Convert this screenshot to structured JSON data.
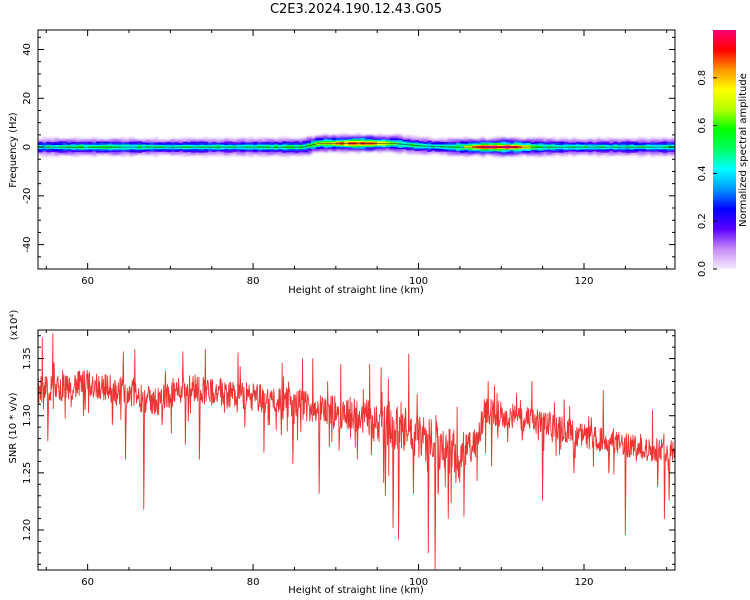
{
  "title": "C2E3.2024.190.12.43.G05",
  "chart_data": [
    {
      "type": "heatmap",
      "xlabel": "Height of straight line (km)",
      "ylabel": "Frequency (Hz)",
      "xlim": [
        54,
        131
      ],
      "ylim": [
        -50,
        48
      ],
      "xticks": [
        60,
        80,
        100,
        120
      ],
      "yticks": [
        40,
        20,
        0,
        -20,
        -40
      ],
      "yticklabels": [
        "40",
        "20",
        "0",
        "-20",
        "-40"
      ],
      "band": {
        "center_freq": [
          [
            54,
            0
          ],
          [
            86,
            0
          ],
          [
            88,
            1.5
          ],
          [
            97,
            1.5
          ],
          [
            100,
            0.5
          ],
          [
            104,
            0
          ],
          [
            131,
            0
          ]
        ],
        "halfwidth_hz": 3.5,
        "amplitude_profile": [
          [
            54,
            0.45
          ],
          [
            58,
            0.5
          ],
          [
            62,
            0.55
          ],
          [
            66,
            0.5
          ],
          [
            70,
            0.45
          ],
          [
            74,
            0.5
          ],
          [
            78,
            0.45
          ],
          [
            82,
            0.5
          ],
          [
            86,
            0.55
          ],
          [
            88,
            0.65
          ],
          [
            91,
            0.8
          ],
          [
            93,
            0.9
          ],
          [
            95,
            0.8
          ],
          [
            97,
            0.6
          ],
          [
            100,
            0.5
          ],
          [
            102,
            0.45
          ],
          [
            104,
            0.5
          ],
          [
            106,
            0.7
          ],
          [
            108,
            0.95
          ],
          [
            110,
            0.97
          ],
          [
            112,
            0.85
          ],
          [
            114,
            0.6
          ],
          [
            118,
            0.5
          ],
          [
            122,
            0.45
          ],
          [
            126,
            0.45
          ],
          [
            131,
            0.5
          ]
        ]
      },
      "colorbar": {
        "label": "Normalized spectral amplitude",
        "ticks": [
          0.0,
          0.2,
          0.4,
          0.6,
          0.8
        ],
        "ticklabels": [
          "0.0",
          "0.2",
          "0.4",
          "0.6",
          "0.8"
        ],
        "range": [
          0,
          1
        ],
        "colormap": [
          "#f4eafd",
          "#c78cf7",
          "#5a00ff",
          "#0000ff",
          "#0096ff",
          "#00ffff",
          "#00ff64",
          "#00ff00",
          "#b4ff00",
          "#ffff00",
          "#ff9600",
          "#ff0000",
          "#ff0078"
        ]
      }
    },
    {
      "type": "line",
      "xlabel": "Height of straight line (km)",
      "ylabel": "SNR (10 * v/v)",
      "scale_label": "(x10⁴)",
      "xlim": [
        54,
        131
      ],
      "ylim": [
        1.165,
        1.375
      ],
      "xticks": [
        60,
        80,
        100,
        120
      ],
      "yticks": [
        1.35,
        1.3,
        1.25,
        1.2
      ],
      "yticklabels": [
        "1.35",
        "1.30",
        "1.25",
        "1.20"
      ],
      "color": "#ee3333",
      "series": [
        {
          "baseline": [
            [
              54,
              1.322
            ],
            [
              60,
              1.328
            ],
            [
              64,
              1.322
            ],
            [
              68,
              1.312
            ],
            [
              72,
              1.326
            ],
            [
              76,
              1.32
            ],
            [
              80,
              1.316
            ],
            [
              84,
              1.312
            ],
            [
              88,
              1.306
            ],
            [
              92,
              1.302
            ],
            [
              96,
              1.292
            ],
            [
              100,
              1.282
            ],
            [
              104,
              1.268
            ],
            [
              107,
              1.274
            ],
            [
              108,
              1.304
            ],
            [
              112,
              1.298
            ],
            [
              116,
              1.292
            ],
            [
              120,
              1.282
            ],
            [
              124,
              1.276
            ],
            [
              128,
              1.27
            ],
            [
              131,
              1.27
            ]
          ],
          "noise_amplitude": [
            [
              54,
              0.02
            ],
            [
              90,
              0.022
            ],
            [
              96,
              0.032
            ],
            [
              104,
              0.034
            ],
            [
              108,
              0.02
            ],
            [
              131,
              0.016
            ]
          ],
          "dips": [
            [
              55.2,
              1.278
            ],
            [
              59.5,
              1.3
            ],
            [
              63.0,
              1.292
            ],
            [
              64.6,
              1.262
            ],
            [
              66.8,
              1.218
            ],
            [
              69.0,
              1.292
            ],
            [
              71.8,
              1.275
            ],
            [
              73.5,
              1.262
            ],
            [
              79.0,
              1.29
            ],
            [
              81.3,
              1.268
            ],
            [
              84.8,
              1.258
            ],
            [
              88.0,
              1.232
            ],
            [
              90.4,
              1.27
            ],
            [
              92.6,
              1.262
            ],
            [
              94.3,
              1.266
            ],
            [
              96.0,
              1.23
            ],
            [
              96.9,
              1.202
            ],
            [
              97.6,
              1.192
            ],
            [
              99.4,
              1.232
            ],
            [
              101.2,
              1.18
            ],
            [
              102.0,
              1.166
            ],
            [
              103.6,
              1.21
            ],
            [
              104.8,
              1.246
            ],
            [
              105.5,
              1.212
            ],
            [
              108.8,
              1.256
            ],
            [
              115.0,
              1.226
            ],
            [
              118.8,
              1.25
            ],
            [
              123.0,
              1.25
            ],
            [
              125.0,
              1.196
            ],
            [
              128.9,
              1.238
            ],
            [
              129.7,
              1.21
            ],
            [
              130.3,
              1.226
            ]
          ],
          "peaks": [
            [
              54.5,
              1.368
            ],
            [
              55.8,
              1.372
            ],
            [
              64.3,
              1.356
            ],
            [
              65.7,
              1.358
            ],
            [
              71.5,
              1.356
            ],
            [
              74.2,
              1.358
            ],
            [
              78.2,
              1.355
            ],
            [
              83.5,
              1.346
            ],
            [
              86.0,
              1.35
            ],
            [
              87.2,
              1.35
            ],
            [
              90.6,
              1.345
            ],
            [
              94.1,
              1.345
            ],
            [
              95.5,
              1.342
            ],
            [
              98.8,
              1.354
            ],
            [
              108.4,
              1.33
            ],
            [
              109.2,
              1.326
            ],
            [
              113.7,
              1.33
            ],
            [
              117.6,
              1.314
            ],
            [
              122.3,
              1.322
            ],
            [
              128.3,
              1.305
            ]
          ]
        }
      ]
    }
  ]
}
